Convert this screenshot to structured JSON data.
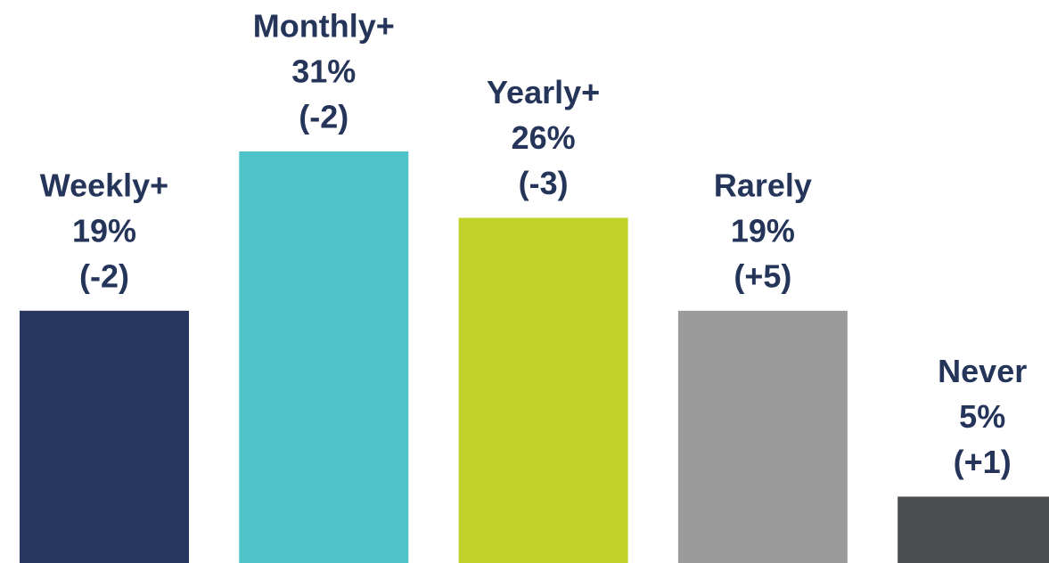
{
  "chart_data": {
    "type": "bar",
    "categories": [
      "Weekly+",
      "Monthly+",
      "Yearly+",
      "Rarely",
      "Never"
    ],
    "values": [
      19,
      31,
      26,
      19,
      5
    ],
    "value_labels": [
      "19%",
      "31%",
      "26%",
      "19%",
      "5%"
    ],
    "change_labels": [
      "(-2)",
      "(-2)",
      "(-3)",
      "(+5)",
      "(+1)"
    ],
    "colors": [
      "#26365e",
      "#4ec3c8",
      "#c2d12a",
      "#9b9b9b",
      "#4d4e50"
    ]
  }
}
